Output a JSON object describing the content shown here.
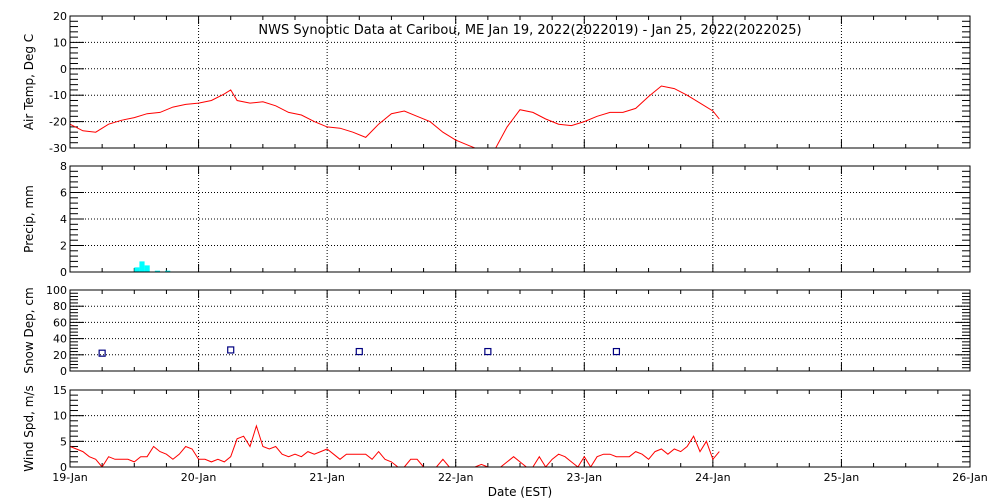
{
  "title": "NWS Synoptic Data at Caribou, ME   Jan 19, 2022(2022019) - Jan 25, 2022(2022025)",
  "x_axis": {
    "label": "Date (EST)",
    "range": [
      0,
      7
    ],
    "tick_labels": [
      "19-Jan",
      "20-Jan",
      "21-Jan",
      "22-Jan",
      "23-Jan",
      "24-Jan",
      "25-Jan",
      "26-Jan"
    ]
  },
  "colors": {
    "air_temp": "#ff0000",
    "precip": "#00ffff",
    "snow_depth": "#000080",
    "wind_speed": "#ff0000",
    "grid": "#000000"
  },
  "chart_data": [
    {
      "type": "line",
      "ylabel": "Air Temp, Deg C",
      "ylim": [
        -30,
        20
      ],
      "yticks": [
        -30,
        -20,
        -10,
        0,
        10,
        20
      ],
      "x_unit": "days since 19-Jan 00:00 EST",
      "grid": true,
      "series": [
        {
          "x": [
            0.0,
            0.1,
            0.2,
            0.3,
            0.4,
            0.5,
            0.6,
            0.7,
            0.8,
            0.9,
            1.0,
            1.1,
            1.2,
            1.25,
            1.3,
            1.4,
            1.5,
            1.6,
            1.7,
            1.8,
            1.9,
            2.0,
            2.1,
            2.2,
            2.3,
            2.4,
            2.5,
            2.6,
            2.7,
            2.8,
            2.9,
            3.0,
            3.1,
            3.2,
            3.3,
            3.4,
            3.5,
            3.6,
            3.7,
            3.8,
            3.9,
            4.0,
            4.1,
            4.2,
            4.3,
            4.4,
            4.5,
            4.6,
            4.7,
            4.8,
            4.9,
            5.0,
            5.05
          ],
          "values": [
            -21,
            -23.5,
            -24,
            -21,
            -19.5,
            -18.5,
            -17,
            -16.5,
            -14.5,
            -13.5,
            -13,
            -12,
            -9.5,
            -8,
            -12,
            -13,
            -12.5,
            -14,
            -16.5,
            -17.5,
            -20,
            -22,
            -22.5,
            -24,
            -26,
            -21,
            -17,
            -16,
            -18,
            -20,
            -24,
            -27,
            -29,
            -31,
            -31,
            -22,
            -15.5,
            -16.5,
            -19,
            -21,
            -21.5,
            -20,
            -18,
            -16.5,
            -16.5,
            -15,
            -10.5,
            -6.5,
            -7.5,
            -10,
            -13,
            -16,
            -19
          ]
        }
      ]
    },
    {
      "type": "bar",
      "ylabel": "Precip, mm",
      "ylim": [
        0,
        8
      ],
      "yticks": [
        0,
        2,
        4,
        6,
        8
      ],
      "grid": true,
      "x": [
        0.5,
        0.54,
        0.58,
        0.66,
        0.74
      ],
      "values": [
        0.35,
        0.8,
        0.5,
        0.1,
        0.1
      ]
    },
    {
      "type": "scatter",
      "ylabel": "Snow Dep, cm",
      "ylim": [
        0,
        100
      ],
      "yticks": [
        0,
        20,
        40,
        60,
        80,
        100
      ],
      "grid": true,
      "x": [
        0.25,
        1.25,
        2.25,
        3.25,
        4.25
      ],
      "values": [
        22,
        26,
        24,
        24,
        24
      ]
    },
    {
      "type": "line",
      "ylabel": "Wind Spd, m/s",
      "ylim": [
        0,
        15
      ],
      "yticks": [
        0,
        5,
        10,
        15
      ],
      "grid": true,
      "series": [
        {
          "x": [
            0.0,
            0.05,
            0.1,
            0.15,
            0.2,
            0.25,
            0.3,
            0.35,
            0.4,
            0.45,
            0.5,
            0.55,
            0.6,
            0.65,
            0.7,
            0.75,
            0.8,
            0.85,
            0.9,
            0.95,
            1.0,
            1.05,
            1.1,
            1.15,
            1.2,
            1.25,
            1.3,
            1.35,
            1.4,
            1.45,
            1.5,
            1.55,
            1.6,
            1.65,
            1.7,
            1.75,
            1.8,
            1.85,
            1.9,
            1.95,
            2.0,
            2.05,
            2.1,
            2.15,
            2.2,
            2.25,
            2.3,
            2.35,
            2.4,
            2.45,
            2.5,
            2.55,
            2.6,
            2.65,
            2.7,
            2.75,
            2.8,
            2.85,
            2.9,
            2.95,
            3.0,
            3.05,
            3.1,
            3.15,
            3.2,
            3.25,
            3.3,
            3.35,
            3.4,
            3.45,
            3.5,
            3.55,
            3.6,
            3.65,
            3.7,
            3.75,
            3.8,
            3.85,
            3.9,
            3.95,
            4.0,
            4.05,
            4.1,
            4.15,
            4.2,
            4.25,
            4.3,
            4.35,
            4.4,
            4.45,
            4.5,
            4.55,
            4.6,
            4.65,
            4.7,
            4.75,
            4.8,
            4.85,
            4.9,
            4.95,
            5.0,
            5.05
          ],
          "values": [
            4,
            3.5,
            3,
            2,
            1.5,
            0,
            2,
            1.5,
            1.5,
            1.5,
            1,
            2,
            2,
            4,
            3,
            2.5,
            1.5,
            2.5,
            4,
            3.5,
            1.5,
            1.5,
            1,
            1.5,
            1,
            2,
            5.5,
            6,
            4,
            8,
            4,
            3.5,
            4,
            2.5,
            2,
            2.5,
            2,
            3,
            2.5,
            3,
            3.5,
            2.5,
            1.5,
            2.5,
            2.5,
            2.5,
            2.5,
            1.5,
            3,
            1.5,
            1,
            0,
            0,
            1.5,
            1.5,
            0,
            0,
            0,
            1.5,
            0,
            0,
            0,
            0,
            0,
            0.5,
            0,
            0,
            0,
            1,
            2,
            1,
            0,
            0,
            2,
            0,
            1.5,
            2.5,
            2,
            1,
            0,
            2,
            0,
            2,
            2.5,
            2.5,
            2,
            2,
            2,
            3,
            2.5,
            1.5,
            3,
            3.5,
            2.5,
            3.5,
            3,
            4,
            6,
            3,
            5,
            1.5,
            3
          ]
        }
      ]
    }
  ]
}
